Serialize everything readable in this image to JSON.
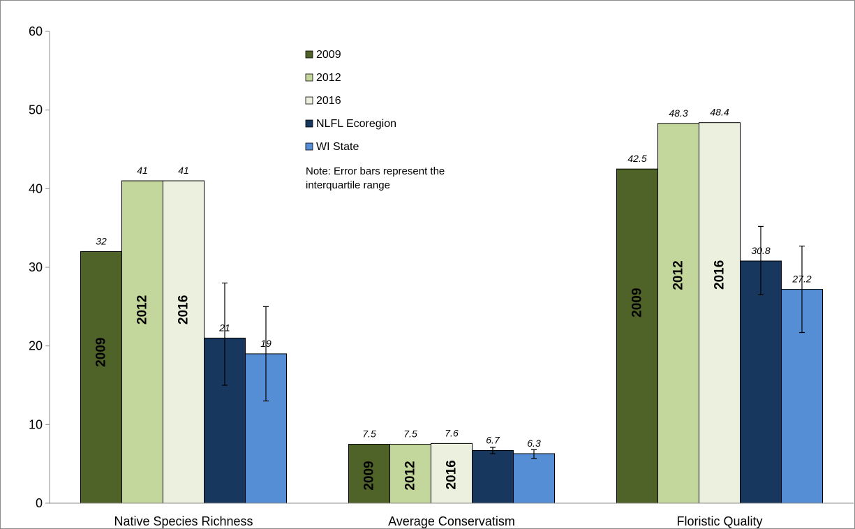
{
  "chart_data": {
    "type": "bar",
    "categories": [
      "Native Species Richness",
      "Average Conservatism",
      "Floristic Quality"
    ],
    "series": [
      {
        "name": "2009",
        "color": "#4f6228",
        "values": [
          32,
          7.5,
          42.5
        ],
        "labels": [
          "32",
          "7.5",
          "42.5"
        ],
        "in_bar_label": "2009",
        "error": null
      },
      {
        "name": "2012",
        "color": "#c3d69b",
        "values": [
          41,
          7.5,
          48.3
        ],
        "labels": [
          "41",
          "7.5",
          "48.3"
        ],
        "in_bar_label": "2012",
        "error": null
      },
      {
        "name": "2016",
        "color": "#ebf1de",
        "values": [
          41,
          7.6,
          48.4
        ],
        "labels": [
          "41",
          "7.6",
          "48.4"
        ],
        "in_bar_label": "2016",
        "error": null
      },
      {
        "name": "NLFL Ecoregion",
        "color": "#17375e",
        "values": [
          21,
          6.7,
          30.8
        ],
        "labels": [
          "21",
          "6.7",
          "30.8"
        ],
        "in_bar_label": null,
        "error": [
          [
            15,
            28
          ],
          [
            6.3,
            7.1
          ],
          [
            26.5,
            35.2
          ]
        ]
      },
      {
        "name": "WI State",
        "color": "#558ed5",
        "values": [
          19,
          6.3,
          27.2
        ],
        "labels": [
          "19",
          "6.3",
          "27.2"
        ],
        "in_bar_label": null,
        "error": [
          [
            13,
            25
          ],
          [
            5.7,
            6.8
          ],
          [
            21.7,
            32.7
          ]
        ]
      }
    ],
    "ylim": [
      0,
      60
    ],
    "yticks": [
      0,
      10,
      20,
      30,
      40,
      50,
      60
    ],
    "title": "",
    "xlabel": "",
    "ylabel": "",
    "legend_position": "top-center",
    "grid": false,
    "note": [
      "Note: Error bars represent the",
      "interquartile range"
    ]
  }
}
